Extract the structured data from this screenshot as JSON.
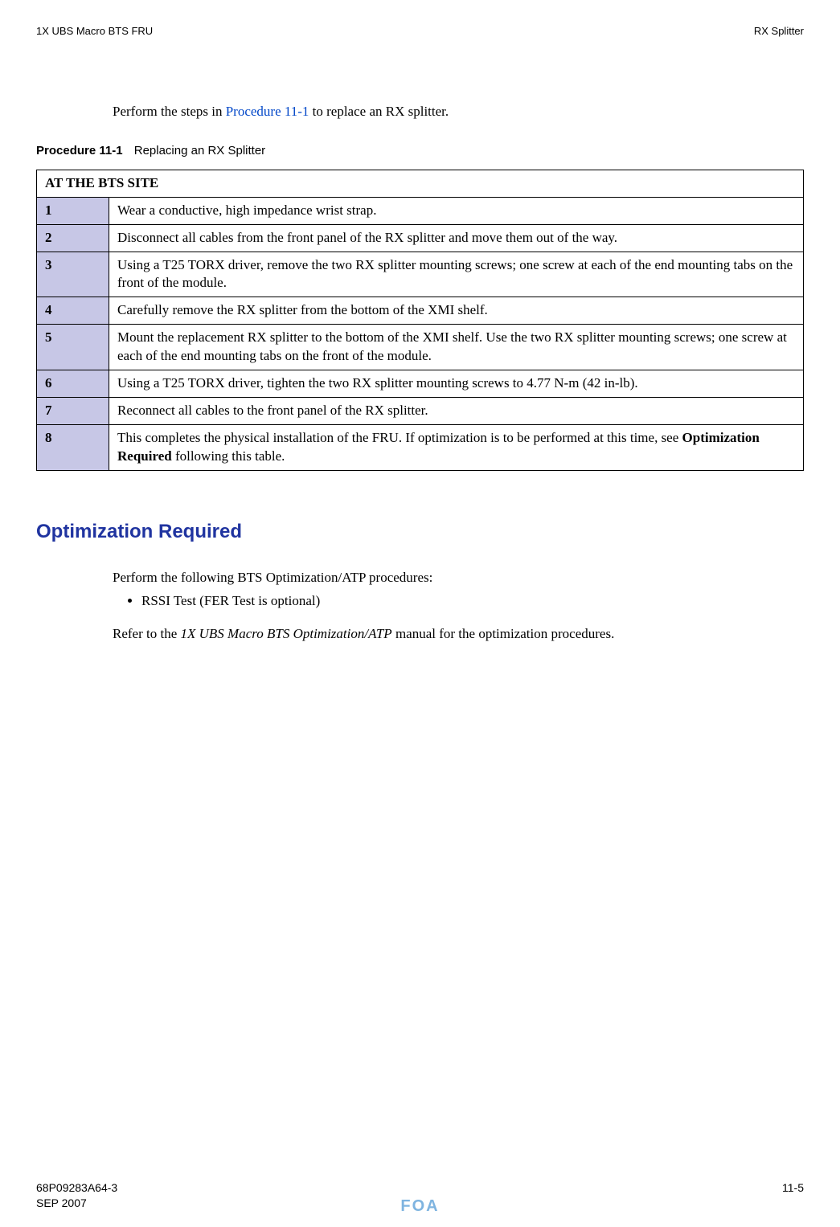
{
  "header": {
    "left": "1X UBS Macro BTS FRU",
    "right": "RX Splitter"
  },
  "intro": {
    "prefix": "Perform the steps in ",
    "link_text": "Procedure 11-1",
    "suffix": " to replace an RX splitter."
  },
  "procedure": {
    "label": "Procedure 11-1",
    "title": "Replacing an RX Splitter",
    "section_header": "AT THE BTS SITE",
    "steps": [
      {
        "num": "1",
        "text": "Wear a conductive, high impedance wrist strap."
      },
      {
        "num": "2",
        "text": "Disconnect all cables from the front panel of the RX splitter and move them out of the way."
      },
      {
        "num": "3",
        "text": "Using a T25 TORX driver, remove the two RX splitter mounting screws; one screw at each of the end mounting tabs on the front of the module."
      },
      {
        "num": "4",
        "text": "Carefully remove the RX splitter from the bottom of the XMI shelf."
      },
      {
        "num": "5",
        "text": "Mount the replacement RX splitter to the bottom of the XMI shelf. Use the two RX splitter mounting screws; one screw at each of the end mounting tabs on the front of the module."
      },
      {
        "num": "6",
        "text": "Using a T25 TORX driver, tighten the two RX splitter mounting screws to 4.77 N-m (42 in-lb)."
      },
      {
        "num": "7",
        "text": "Reconnect all cables to the front panel of the RX splitter."
      },
      {
        "num": "8",
        "pre": "This completes the physical installation of the FRU. If optimization is to be performed at this time, see ",
        "bold": "Optimization Required",
        "post": " following this table."
      }
    ]
  },
  "optimization": {
    "heading": "Optimization Required",
    "lead": "Perform the following BTS Optimization/ATP procedures:",
    "bullets": [
      "RSSI Test (FER Test is optional)"
    ],
    "refer_pre": "Refer to the ",
    "refer_italic": "1X UBS Macro BTS Optimization/ATP",
    "refer_post": " manual for the optimization procedures."
  },
  "footer": {
    "doc_number": "68P09283A64-3",
    "date": "SEP 2007",
    "status": "FOA",
    "page": "11-5"
  },
  "colors": {
    "step_bg": "#c7c7e6",
    "heading": "#2034a0",
    "link": "#0046c8",
    "foa": "#7fb4e0"
  }
}
